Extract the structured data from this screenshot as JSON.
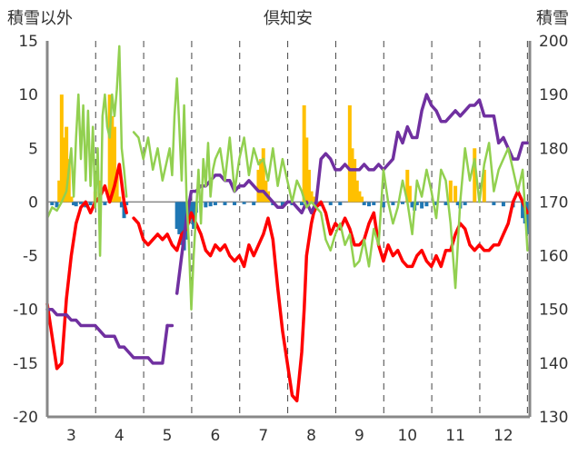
{
  "chart_data": {
    "type": "bar+line",
    "title": "倶知安",
    "ylabel_left": "積雪以外",
    "ylabel_right": "積雪",
    "ylim_left": [
      -20,
      15
    ],
    "ylim_right": [
      130,
      200
    ],
    "yticks_left": [
      15,
      10,
      5,
      0,
      -5,
      -10,
      -15,
      -20
    ],
    "yticks_right": [
      200,
      190,
      180,
      170,
      160,
      150,
      140,
      130
    ],
    "xlim": [
      2.5,
      12.55
    ],
    "xticks": [
      3,
      4,
      5,
      6,
      7,
      8,
      9,
      10,
      11,
      12
    ],
    "xtick_labels": [
      "3",
      "4",
      "5",
      "6",
      "7",
      "8",
      "9",
      "10",
      "11",
      "12"
    ],
    "grid": "vertical dashed",
    "colors": {
      "bars_positive": "#FFC000",
      "bars_negative": "#1F77B4",
      "red": "#FF0000",
      "purple": "#7030A0",
      "green": "#92D050",
      "axis": "#888888"
    },
    "bars": {
      "x": [
        2.6,
        2.7,
        2.75,
        2.8,
        2.85,
        2.9,
        2.95,
        3.0,
        3.05,
        3.1,
        3.2,
        3.3,
        3.4,
        3.5,
        3.6,
        3.7,
        3.8,
        3.85,
        3.9,
        3.95,
        4.0,
        4.05,
        4.1,
        4.15,
        5.2,
        5.25,
        5.3,
        5.35,
        5.4,
        5.45,
        5.5,
        5.55,
        5.6,
        5.7,
        5.8,
        5.9,
        6.0,
        6.2,
        6.4,
        6.6,
        6.8,
        6.9,
        6.95,
        7.0,
        7.05,
        7.1,
        7.2,
        7.4,
        7.6,
        7.8,
        7.85,
        7.9,
        7.95,
        8.0,
        8.05,
        8.1,
        8.2,
        8.4,
        8.6,
        8.8,
        8.85,
        8.9,
        8.95,
        9.0,
        9.05,
        9.1,
        9.2,
        9.3,
        9.5,
        9.7,
        9.9,
        10.0,
        10.05,
        10.1,
        10.15,
        10.2,
        10.3,
        10.4,
        10.6,
        10.8,
        10.9,
        11.0,
        11.05,
        11.1,
        11.2,
        11.4,
        11.6,
        11.8,
        12.0,
        12.2,
        12.4,
        12.45,
        12.5
      ],
      "values": [
        -0.3,
        -0.5,
        2.0,
        10.0,
        6.0,
        7.0,
        4.0,
        0.5,
        -0.3,
        -0.4,
        -0.2,
        -0.5,
        -0.3,
        1.0,
        2.0,
        -0.3,
        10.0,
        8.0,
        7.0,
        3.0,
        0.5,
        -0.5,
        -1.5,
        -0.3,
        -2.5,
        -3.0,
        -4.0,
        -4.5,
        -3.5,
        -2.0,
        -1.5,
        -2.5,
        -1.0,
        -0.3,
        -0.5,
        -0.4,
        -0.3,
        -0.3,
        -0.3,
        -0.2,
        -0.3,
        3.0,
        4.0,
        5.0,
        2.0,
        1.0,
        -0.3,
        -0.4,
        -0.3,
        -0.3,
        9.0,
        6.0,
        3.0,
        1.0,
        0.5,
        -0.3,
        -0.4,
        -0.3,
        -0.3,
        9.0,
        5.0,
        4.0,
        2.0,
        1.0,
        0.5,
        -0.3,
        -0.4,
        -0.3,
        -0.5,
        -0.3,
        -0.2,
        3.0,
        1.5,
        -0.5,
        -0.8,
        -0.3,
        -0.6,
        -0.4,
        -0.3,
        -0.3,
        2.0,
        1.5,
        -0.3,
        -0.6,
        -0.3,
        5.0,
        3.0,
        -0.3,
        -0.4,
        -0.5,
        -1.5,
        -2.0,
        -3.0
      ]
    },
    "series": [
      {
        "color": "#FF0000",
        "axis": "left",
        "segments": [
          {
            "x": [
              2.5,
              2.6,
              2.7,
              2.8,
              2.9,
              3.0,
              3.1,
              3.2,
              3.3,
              3.4,
              3.5,
              3.6,
              3.7,
              3.8,
              3.9,
              4.0,
              4.1,
              4.15
            ],
            "y": [
              -9.5,
              -12.5,
              -15.5,
              -15.0,
              -9.0,
              -5.0,
              -2.0,
              -0.5,
              0.0,
              -1.0,
              0.0,
              0.5,
              1.5,
              0.0,
              1.5,
              3.5,
              0.0,
              -1.0
            ]
          },
          {
            "x": [
              4.3,
              4.4,
              4.5,
              4.6,
              4.7,
              4.8,
              4.9,
              5.0,
              5.1,
              5.2,
              5.3,
              5.4,
              5.5,
              5.6,
              5.7,
              5.8,
              5.9,
              6.0,
              6.1,
              6.2,
              6.3,
              6.4,
              6.5,
              6.6,
              6.7,
              6.8,
              6.9,
              7.0,
              7.1,
              7.2,
              7.3,
              7.4,
              7.5,
              7.6,
              7.7,
              7.8,
              7.85,
              7.9,
              8.0,
              8.05,
              8.1,
              8.2,
              8.3,
              8.4,
              8.5,
              8.6,
              8.7,
              8.8,
              8.9,
              9.0,
              9.1,
              9.2,
              9.3,
              9.4,
              9.5,
              9.6,
              9.7,
              9.8,
              9.9,
              10.0,
              10.1,
              10.2,
              10.3,
              10.4,
              10.5,
              10.6,
              10.7,
              10.8,
              10.9,
              11.0,
              11.1,
              11.2,
              11.3,
              11.4,
              11.5,
              11.6,
              11.7,
              11.8,
              11.9,
              12.0,
              12.1,
              12.2,
              12.3,
              12.4,
              12.5
            ],
            "y": [
              -1.5,
              -2.0,
              -3.5,
              -4.0,
              -3.5,
              -3.0,
              -3.5,
              -3.0,
              -4.0,
              -4.5,
              -3.0,
              -2.5,
              -1.0,
              -2.0,
              -3.0,
              -4.5,
              -5.0,
              -4.0,
              -4.5,
              -4.0,
              -5.0,
              -5.5,
              -5.0,
              -6.0,
              -4.0,
              -5.0,
              -4.0,
              -3.0,
              -1.5,
              -3.5,
              -8.0,
              -12.0,
              -15.0,
              -18.0,
              -18.5,
              -14.0,
              -10.0,
              -5.0,
              -2.0,
              -1.0,
              -0.5,
              0.0,
              -1.0,
              -3.0,
              -2.0,
              -2.5,
              -1.5,
              -2.5,
              -4.0,
              -4.0,
              -3.5,
              -2.0,
              -1.0,
              -4.0,
              -5.5,
              -4.0,
              -5.0,
              -4.5,
              -5.5,
              -6.0,
              -6.0,
              -5.0,
              -4.5,
              -5.5,
              -6.0,
              -5.0,
              -6.0,
              -4.5,
              -4.5,
              -3.0,
              -2.0,
              -2.5,
              -4.0,
              -4.5,
              -4.0,
              -4.5,
              -4.5,
              -4.0,
              -4.0,
              -3.0,
              -2.0,
              0.0,
              1.0,
              0.0,
              -1.0
            ]
          }
        ]
      },
      {
        "color": "#7030A0",
        "axis": "right",
        "segments": [
          {
            "x": [
              2.5,
              2.6,
              2.7,
              2.8,
              2.9,
              3.0,
              3.1,
              3.2,
              3.3,
              3.4,
              3.5,
              3.6,
              3.7,
              3.8,
              3.9,
              4.0,
              4.1,
              4.2,
              4.3,
              4.4,
              4.5,
              4.6,
              4.7,
              4.8,
              4.9,
              5.0
            ],
            "y": [
              150,
              150,
              149,
              149,
              149,
              148,
              148,
              147,
              147,
              147,
              147,
              146,
              145,
              145,
              145,
              143,
              143,
              142,
              141,
              141,
              141,
              141,
              140,
              140,
              140,
              147
            ]
          },
          {
            "x": [
              5.0,
              5.1
            ],
            "y": [
              147,
              147
            ]
          },
          {
            "x": [
              5.2,
              5.3,
              5.4,
              5.5,
              5.6,
              5.7,
              5.8,
              5.9,
              6.0,
              6.1,
              6.2,
              6.3,
              6.4,
              6.5,
              6.6,
              6.7,
              6.8,
              6.9,
              7.0,
              7.1,
              7.2,
              7.3,
              7.4,
              7.5,
              7.6,
              7.7,
              7.8,
              7.9,
              8.0,
              8.1,
              8.2,
              8.3,
              8.4,
              8.5,
              8.6,
              8.7,
              8.8,
              8.9,
              9.0,
              9.1,
              9.2,
              9.3,
              9.4,
              9.5,
              9.6,
              9.7,
              9.8,
              9.9,
              10.0,
              10.1,
              10.2,
              10.3,
              10.4,
              10.5,
              10.6,
              10.7,
              10.8,
              10.9,
              11.0,
              11.1,
              11.2,
              11.3,
              11.4,
              11.5,
              11.6,
              11.7,
              11.8,
              11.9,
              12.0,
              12.1,
              12.2,
              12.3,
              12.4,
              12.5
            ],
            "y": [
              153,
              160,
              167,
              172,
              172,
              173,
              173,
              174,
              175,
              175,
              174,
              174,
              172,
              173,
              173,
              174,
              173,
              172,
              172,
              171,
              170,
              169,
              169,
              170,
              170,
              169,
              168,
              170,
              168,
              170,
              178,
              179,
              178,
              176,
              176,
              177,
              176,
              176,
              176,
              177,
              176,
              176,
              177,
              176,
              177,
              178,
              183,
              181,
              184,
              182,
              182,
              187,
              190,
              188,
              187,
              185,
              185,
              186,
              187,
              186,
              187,
              188,
              188,
              189,
              186,
              186,
              186,
              181,
              182,
              180,
              178,
              178,
              181,
              181
            ]
          }
        ]
      },
      {
        "color": "#92D050",
        "axis": "left",
        "segments": [
          {
            "x": [
              2.5,
              2.6,
              2.7,
              2.8,
              2.9,
              3.0,
              3.05,
              3.1,
              3.15,
              3.2,
              3.25,
              3.3,
              3.35,
              3.4,
              3.45,
              3.5,
              3.55,
              3.6,
              3.65,
              3.7,
              3.75,
              3.8,
              3.85,
              3.9,
              3.95,
              4.0,
              4.05,
              4.1,
              4.15
            ],
            "y": [
              -1.5,
              -0.5,
              -0.8,
              0.0,
              1.0,
              5.0,
              0.5,
              6.0,
              10.0,
              4.0,
              9.0,
              2.0,
              8.5,
              1.5,
              7.0,
              -0.5,
              5.0,
              -5.0,
              8.0,
              10.0,
              7.0,
              6.0,
              10.0,
              8.0,
              10.5,
              14.5,
              5.0,
              3.0,
              0.5
            ]
          },
          {
            "x": [
              4.3,
              4.4,
              4.5,
              4.6,
              4.7,
              4.8,
              4.9,
              5.0,
              5.05,
              5.1,
              5.15,
              5.2,
              5.25,
              5.3,
              5.35,
              5.4,
              5.45,
              5.5,
              5.55,
              5.6,
              5.65,
              5.7,
              5.75,
              5.8,
              5.85,
              5.9,
              5.95,
              6.0,
              6.1,
              6.2,
              6.3,
              6.4,
              6.5,
              6.6,
              6.7,
              6.8,
              6.9,
              7.0,
              7.1,
              7.2,
              7.3,
              7.4,
              7.5,
              7.6,
              7.7,
              7.8,
              7.9,
              8.0,
              8.1,
              8.2,
              8.3,
              8.4,
              8.5,
              8.6,
              8.7,
              8.8,
              8.9,
              9.0,
              9.1,
              9.2,
              9.3,
              9.4,
              9.5,
              9.6,
              9.7,
              9.8,
              9.9,
              10.0,
              10.1,
              10.2,
              10.3,
              10.4,
              10.5,
              10.6,
              10.7,
              10.8,
              10.9,
              11.0,
              11.1,
              11.2,
              11.3,
              11.4,
              11.5,
              11.6,
              11.7,
              11.8,
              11.9,
              12.0,
              12.1,
              12.2,
              12.3,
              12.4,
              12.5
            ],
            "y": [
              6.5,
              6.0,
              4.0,
              6.0,
              3.0,
              5.0,
              2.0,
              4.0,
              5.0,
              2.5,
              8.0,
              11.5,
              7.0,
              2.0,
              9.0,
              0.5,
              -4.0,
              -10.0,
              -5.0,
              -1.0,
              3.0,
              -2.0,
              4.0,
              1.5,
              5.5,
              0.5,
              3.0,
              4.0,
              5.0,
              2.0,
              6.0,
              1.0,
              4.0,
              6.0,
              2.5,
              5.0,
              3.5,
              4.0,
              2.0,
              5.0,
              1.5,
              4.0,
              2.0,
              0.0,
              2.0,
              1.0,
              -0.5,
              0.0,
              -0.5,
              -1.0,
              -3.5,
              -4.5,
              -3.0,
              -2.0,
              -4.0,
              -3.0,
              -6.0,
              -5.5,
              -3.5,
              -6.0,
              -2.5,
              -4.0,
              3.0,
              0.0,
              -2.0,
              -0.5,
              2.0,
              0.0,
              -3.0,
              2.0,
              0.5,
              3.0,
              1.0,
              -1.5,
              3.0,
              2.0,
              -2.0,
              -8.0,
              0.0,
              5.0,
              2.0,
              4.0,
              0.0,
              3.5,
              5.5,
              1.0,
              3.0,
              4.0,
              5.0,
              3.0,
              1.0,
              3.0,
              -4.5
            ]
          }
        ]
      }
    ]
  }
}
